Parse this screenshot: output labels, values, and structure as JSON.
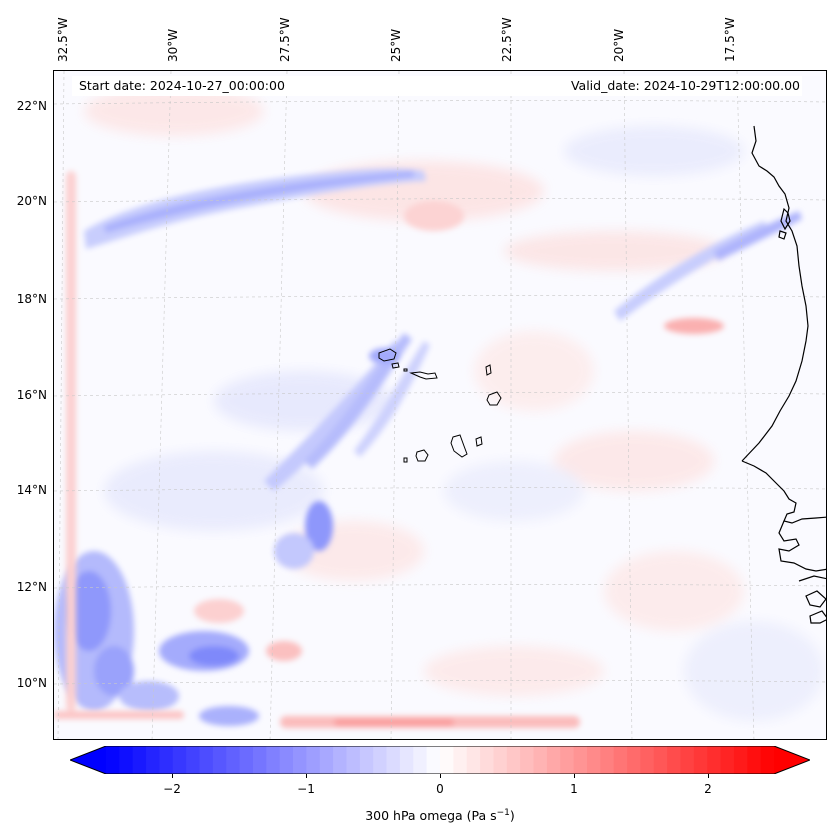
{
  "map": {
    "start_date": "Start date: 2024-10-27_00:00:00",
    "valid_date": "Valid_date: 2024-10-29T12:00:00.00",
    "longitude_labels": [
      "32.5°W",
      "30°W",
      "27.5°W",
      "25°W",
      "22.5°W",
      "20°W",
      "17.5°W"
    ],
    "latitude_labels": [
      "22°N",
      "20°N",
      "18°N",
      "16°N",
      "14°N",
      "12°N",
      "10°N"
    ],
    "variable": "300 hPa omega",
    "units": "Pa s⁻¹",
    "colormap": "bwr",
    "color_negative": "#0000ff",
    "color_zero": "#ffffff",
    "color_positive": "#ff0000",
    "coastline_color": "#000000",
    "gridline_color": "#cccccc",
    "islands": "Cape Verde",
    "mainland": "West Africa coast (Senegal, Gambia, Guinea-Bissau)"
  },
  "colorbar": {
    "label": "300 hPa omega (Pa s",
    "label_sup": "−1",
    "label_close": ")",
    "range": [
      -2.7,
      2.7
    ],
    "extend": "both",
    "ticks": [
      {
        "value": -2,
        "label": "−2"
      },
      {
        "value": -1,
        "label": "−1"
      },
      {
        "value": 0,
        "label": "0"
      },
      {
        "value": 1,
        "label": "1"
      },
      {
        "value": 2,
        "label": "2"
      }
    ]
  }
}
